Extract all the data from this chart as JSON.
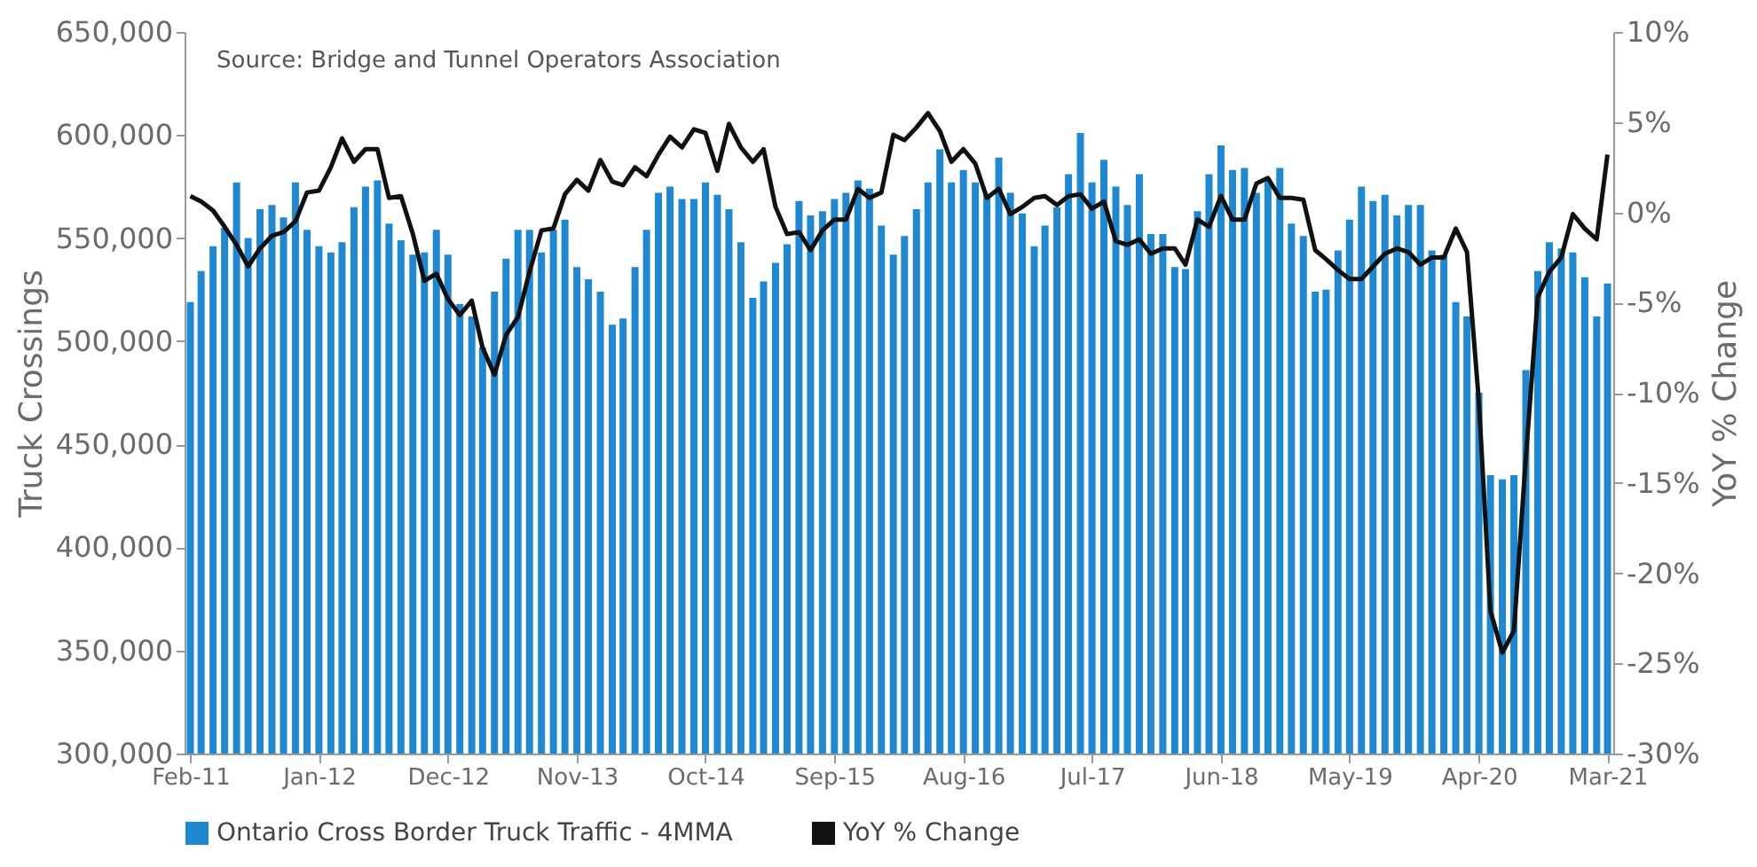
{
  "chart_data": {
    "type": "bar",
    "ylabel": "Truck Crossings",
    "y2label": "YoY % Change",
    "annotations": [
      "Source: Bridge and Tunnel Operators Association"
    ],
    "x": [
      "2011-02",
      "2011-03",
      "2011-04",
      "2011-05",
      "2011-06",
      "2011-07",
      "2011-08",
      "2011-09",
      "2011-10",
      "2011-11",
      "2011-12",
      "2012-01",
      "2012-02",
      "2012-03",
      "2012-04",
      "2012-05",
      "2012-06",
      "2012-07",
      "2012-08",
      "2012-09",
      "2012-10",
      "2012-11",
      "2012-12",
      "2013-01",
      "2013-02",
      "2013-03",
      "2013-04",
      "2013-05",
      "2013-06",
      "2013-07",
      "2013-08",
      "2013-09",
      "2013-10",
      "2013-11",
      "2013-12",
      "2014-01",
      "2014-02",
      "2014-03",
      "2014-04",
      "2014-05",
      "2014-06",
      "2014-07",
      "2014-08",
      "2014-09",
      "2014-10",
      "2014-11",
      "2014-12",
      "2015-01",
      "2015-02",
      "2015-03",
      "2015-04",
      "2015-05",
      "2015-06",
      "2015-07",
      "2015-08",
      "2015-09",
      "2015-10",
      "2015-11",
      "2015-12",
      "2016-01",
      "2016-02",
      "2016-03",
      "2016-04",
      "2016-05",
      "2016-06",
      "2016-07",
      "2016-08",
      "2016-09",
      "2016-10",
      "2016-11",
      "2016-12",
      "2017-01",
      "2017-02",
      "2017-03",
      "2017-04",
      "2017-05",
      "2017-06",
      "2017-07",
      "2017-08",
      "2017-09",
      "2017-10",
      "2017-11",
      "2017-12",
      "2018-01",
      "2018-02",
      "2018-03",
      "2018-04",
      "2018-05",
      "2018-06",
      "2018-07",
      "2018-08",
      "2018-09",
      "2018-10",
      "2018-11",
      "2018-12",
      "2019-01",
      "2019-02",
      "2019-03",
      "2019-04",
      "2019-05",
      "2019-06",
      "2019-07",
      "2019-08",
      "2019-09",
      "2019-10",
      "2019-11",
      "2019-12",
      "2020-01",
      "2020-02",
      "2020-03",
      "2020-04",
      "2020-05",
      "2020-06",
      "2020-07",
      "2020-08",
      "2020-09",
      "2020-10",
      "2020-11",
      "2020-12",
      "2021-01",
      "2021-02",
      "2021-03"
    ],
    "xlim": [
      "2011-01-17",
      "2021-03-16"
    ],
    "xticks": [
      {
        "value": "2011-02",
        "label": "Feb-11"
      },
      {
        "value": "2012-01",
        "label": "Jan-12"
      },
      {
        "value": "2012-12",
        "label": "Dec-12"
      },
      {
        "value": "2013-11",
        "label": "Nov-13"
      },
      {
        "value": "2014-10",
        "label": "Oct-14"
      },
      {
        "value": "2015-09",
        "label": "Sep-15"
      },
      {
        "value": "2016-08",
        "label": "Aug-16"
      },
      {
        "value": "2017-07",
        "label": "Jul-17"
      },
      {
        "value": "2018-06",
        "label": "Jun-18"
      },
      {
        "value": "2019-05",
        "label": "May-19"
      },
      {
        "value": "2020-04",
        "label": "Apr-20"
      },
      {
        "value": "2021-03",
        "label": "Mar-21"
      }
    ],
    "ylim": [
      300000,
      650000
    ],
    "yticks": [
      {
        "value": 300000,
        "label": "300,000"
      },
      {
        "value": 350000,
        "label": "350,000"
      },
      {
        "value": 400000,
        "label": "400,000"
      },
      {
        "value": 450000,
        "label": "450,000"
      },
      {
        "value": 500000,
        "label": "500,000"
      },
      {
        "value": 550000,
        "label": "550,000"
      },
      {
        "value": 600000,
        "label": "600,000"
      },
      {
        "value": 650000,
        "label": "650,000"
      }
    ],
    "y2lim": [
      -30,
      10
    ],
    "y2ticks": [
      {
        "value": -30,
        "label": "-30%"
      },
      {
        "value": -25,
        "label": "-25%"
      },
      {
        "value": -20,
        "label": "-20%"
      },
      {
        "value": -15,
        "label": "-15%"
      },
      {
        "value": -10,
        "label": "-10%"
      },
      {
        "value": -5,
        "label": "-5%"
      },
      {
        "value": 0,
        "label": "0%"
      },
      {
        "value": 5,
        "label": "5%"
      },
      {
        "value": 10,
        "label": "10%"
      }
    ],
    "legend": "bottom",
    "series": [
      {
        "name": "Ontario Cross Border Truck Traffic - 4MMA",
        "color": "#1e88d2",
        "values": [
          519000,
          534000,
          546000,
          555000,
          577000,
          550000,
          564000,
          566000,
          560000,
          577000,
          554000,
          546000,
          543000,
          548000,
          565000,
          575000,
          578000,
          557000,
          549000,
          542000,
          543000,
          554000,
          542000,
          518000,
          512000,
          497000,
          524000,
          540000,
          554000,
          554000,
          543000,
          554000,
          559000,
          536000,
          530000,
          524000,
          508000,
          511000,
          536000,
          554000,
          572000,
          575000,
          569000,
          569000,
          577000,
          571000,
          564000,
          548000,
          521000,
          529000,
          538000,
          547000,
          568000,
          561000,
          563000,
          569000,
          572000,
          578000,
          574000,
          556000,
          542000,
          551000,
          564000,
          577000,
          593000,
          577000,
          583000,
          577000,
          571000,
          589000,
          572000,
          562000,
          546000,
          556000,
          565000,
          581000,
          601000,
          577000,
          588000,
          575000,
          566000,
          581000,
          552000,
          552000,
          536000,
          535000,
          563000,
          581000,
          595000,
          583000,
          584000,
          572000,
          578000,
          584000,
          557000,
          551000,
          524000,
          525000,
          544000,
          559000,
          575000,
          568000,
          571000,
          561000,
          566000,
          566000,
          544000,
          542000,
          519000,
          512000,
          475000,
          435000,
          433000,
          435000,
          486000,
          534000,
          548000,
          545000,
          543000,
          531000,
          512000,
          528000
        ]
      },
      {
        "name": "YoY % Change",
        "type": "line",
        "axis": "y2",
        "color": "#111111",
        "values": [
          0.9,
          0.6,
          0.1,
          -0.8,
          -1.8,
          -3.0,
          -2.0,
          -1.3,
          -1.1,
          -0.5,
          1.1,
          1.2,
          2.5,
          4.1,
          2.8,
          3.5,
          3.5,
          0.8,
          0.9,
          -1.2,
          -3.8,
          -3.4,
          -4.8,
          -5.7,
          -4.9,
          -7.5,
          -9.0,
          -6.8,
          -5.8,
          -3.3,
          -1.0,
          -0.9,
          1.0,
          1.8,
          1.2,
          2.9,
          1.7,
          1.5,
          2.5,
          2.0,
          3.2,
          4.2,
          3.6,
          4.6,
          4.4,
          2.3,
          4.9,
          3.6,
          2.8,
          3.5,
          0.3,
          -1.2,
          -1.1,
          -2.1,
          -1.0,
          -0.4,
          -0.4,
          1.3,
          0.8,
          1.1,
          4.3,
          4.0,
          4.7,
          5.5,
          4.5,
          2.8,
          3.5,
          2.7,
          0.8,
          1.3,
          -0.1,
          0.3,
          0.8,
          0.9,
          0.4,
          0.9,
          1.0,
          0.2,
          0.6,
          -1.6,
          -1.8,
          -1.5,
          -2.3,
          -2.0,
          -2.0,
          -2.9,
          -0.4,
          -0.8,
          0.9,
          -0.4,
          -0.4,
          1.6,
          1.9,
          0.8,
          0.8,
          0.7,
          -2.1,
          -2.6,
          -3.2,
          -3.7,
          -3.7,
          -3.0,
          -2.3,
          -2.0,
          -2.2,
          -2.9,
          -2.5,
          -2.5,
          -0.9,
          -2.2,
          -10.5,
          -22.1,
          -24.4,
          -23.2,
          -13.6,
          -4.7,
          -3.3,
          -2.5,
          -0.1,
          -0.9,
          -1.5,
          3.2
        ]
      }
    ]
  }
}
